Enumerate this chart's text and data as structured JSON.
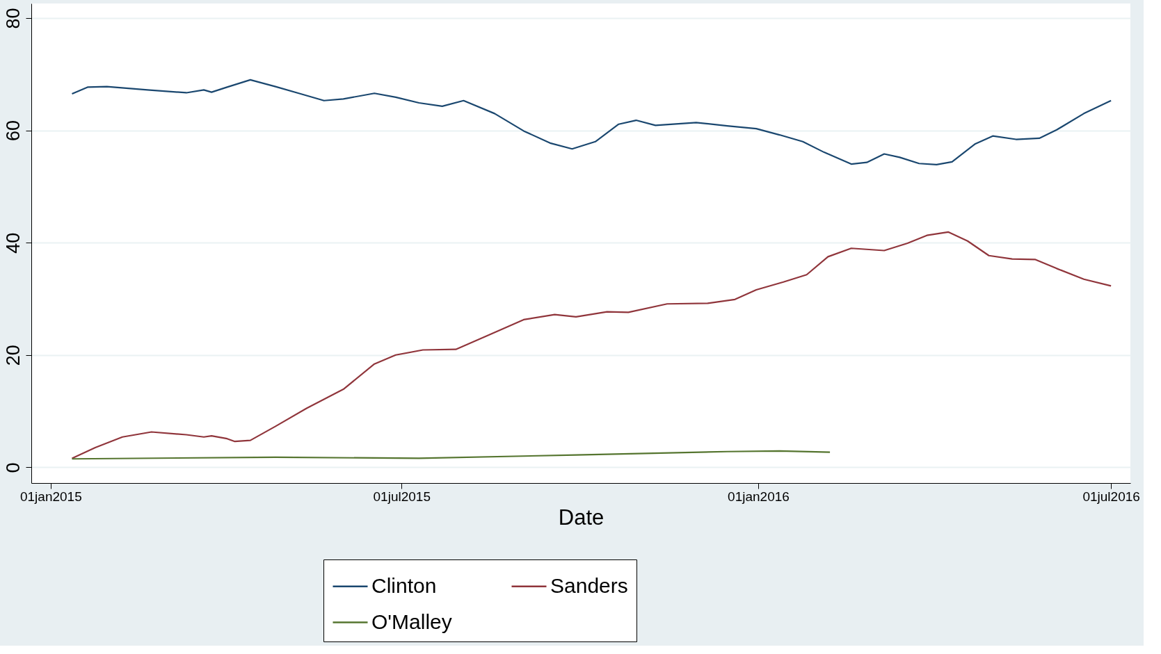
{
  "chart_data": {
    "type": "line",
    "xlabel": "Date",
    "xlim": [
      "2014-12-22",
      "2016-07-11"
    ],
    "xticks": [
      {
        "value": "2015-01-01",
        "label": "01jan2015"
      },
      {
        "value": "2015-07-01",
        "label": "01jul2015"
      },
      {
        "value": "2016-01-01",
        "label": "01jan2016"
      },
      {
        "value": "2016-07-01",
        "label": "01jul2016"
      }
    ],
    "ylim": [
      -2.8,
      82.6
    ],
    "yticks": [
      0,
      20,
      40,
      60,
      80
    ],
    "grid": "y",
    "legend": "bottom",
    "marker": "none",
    "line_style": "solid",
    "series": [
      {
        "name": "Clinton",
        "color": "#1a476f",
        "x": [
          "2015-01-12",
          "2015-01-20",
          "2015-01-30",
          "2015-02-20",
          "2015-03-12",
          "2015-03-21",
          "2015-03-25",
          "2015-04-02",
          "2015-04-14",
          "2015-04-27",
          "2015-05-09",
          "2015-05-22",
          "2015-06-01",
          "2015-06-17",
          "2015-06-28",
          "2015-07-10",
          "2015-07-22",
          "2015-08-02",
          "2015-08-18",
          "2015-09-02",
          "2015-09-16",
          "2015-09-27",
          "2015-10-09",
          "2015-10-21",
          "2015-10-30",
          "2015-11-09",
          "2015-11-30",
          "2015-12-16",
          "2015-12-31",
          "2016-01-12",
          "2016-01-24",
          "2016-02-04",
          "2016-02-18",
          "2016-02-26",
          "2016-03-06",
          "2016-03-14",
          "2016-03-24",
          "2016-04-02",
          "2016-04-10",
          "2016-04-22",
          "2016-05-01",
          "2016-05-13",
          "2016-05-25",
          "2016-06-03",
          "2016-06-17",
          "2016-07-01"
        ],
        "values": [
          66.5,
          67.7,
          67.8,
          67.2,
          66.7,
          67.2,
          66.8,
          67.7,
          69.0,
          67.8,
          66.6,
          65.3,
          65.6,
          66.6,
          65.9,
          64.9,
          64.3,
          65.3,
          63.0,
          59.9,
          57.7,
          56.7,
          58.0,
          61.1,
          61.8,
          60.9,
          61.4,
          60.8,
          60.3,
          59.2,
          58.0,
          56.1,
          54.0,
          54.3,
          55.8,
          55.2,
          54.1,
          53.9,
          54.4,
          57.6,
          59.0,
          58.4,
          58.6,
          60.1,
          63.0,
          65.3
        ]
      },
      {
        "name": "Sanders",
        "color": "#90353b",
        "x": [
          "2015-01-12",
          "2015-01-24",
          "2015-02-07",
          "2015-02-22",
          "2015-03-12",
          "2015-03-21",
          "2015-03-25",
          "2015-04-02",
          "2015-04-06",
          "2015-04-14",
          "2015-04-27",
          "2015-05-13",
          "2015-06-01",
          "2015-06-17",
          "2015-06-28",
          "2015-07-12",
          "2015-07-29",
          "2015-08-14",
          "2015-09-02",
          "2015-09-18",
          "2015-09-29",
          "2015-10-15",
          "2015-10-26",
          "2015-11-15",
          "2015-12-06",
          "2015-12-20",
          "2015-12-31",
          "2016-01-14",
          "2016-01-26",
          "2016-02-06",
          "2016-02-18",
          "2016-03-06",
          "2016-03-18",
          "2016-03-28",
          "2016-04-08",
          "2016-04-18",
          "2016-04-29",
          "2016-05-11",
          "2016-05-23",
          "2016-06-03",
          "2016-06-17",
          "2016-07-01"
        ],
        "values": [
          1.6,
          3.5,
          5.4,
          6.3,
          5.8,
          5.4,
          5.6,
          5.1,
          4.6,
          4.8,
          7.3,
          10.5,
          13.9,
          18.4,
          20.0,
          20.9,
          21.0,
          23.4,
          26.3,
          27.2,
          26.8,
          27.7,
          27.6,
          29.1,
          29.2,
          29.9,
          31.6,
          33.0,
          34.3,
          37.5,
          39.0,
          38.6,
          39.9,
          41.3,
          41.9,
          40.3,
          37.7,
          37.1,
          37.0,
          35.4,
          33.5,
          32.3
        ]
      },
      {
        "name": "O'Malley",
        "color": "#55752f",
        "x": [
          "2015-01-12",
          "2015-04-27",
          "2015-07-10",
          "2015-09-29",
          "2015-12-16",
          "2016-01-12",
          "2016-02-07"
        ],
        "values": [
          1.5,
          1.8,
          1.6,
          2.2,
          2.8,
          2.9,
          2.7
        ]
      }
    ]
  }
}
